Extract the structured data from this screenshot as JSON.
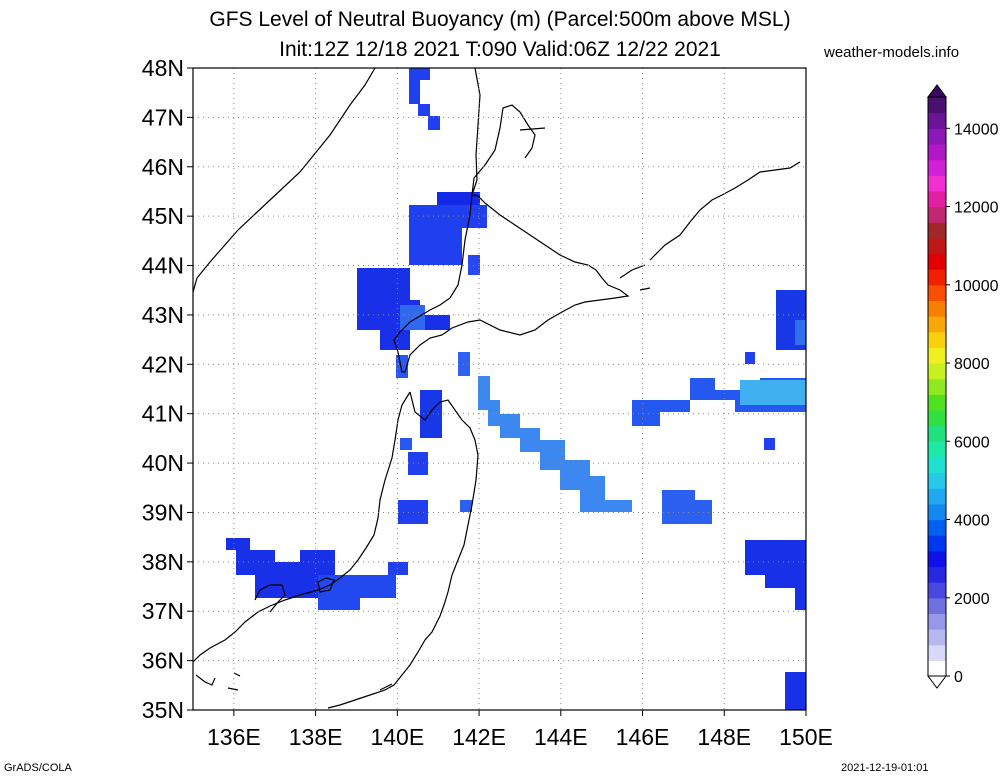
{
  "title_line1": "GFS Level of Neutral Buoyancy (m) (Parcel:500m above MSL)",
  "title_line2": "Init:12Z 12/18 2021 T:090 Valid:06Z 12/22 2021",
  "site": "weather-models.info",
  "footer_left": "GrADS/COLA",
  "footer_right": "2021-12-19-01:01",
  "map": {
    "lon_range": [
      135,
      150
    ],
    "lat_range": [
      35,
      48
    ],
    "lon_ticks": [
      "136E",
      "138E",
      "140E",
      "142E",
      "144E",
      "146E",
      "148E",
      "150E"
    ],
    "lat_ticks": [
      "35N",
      "36N",
      "37N",
      "38N",
      "39N",
      "40N",
      "41N",
      "42N",
      "43N",
      "44N",
      "45N",
      "46N",
      "47N",
      "48N"
    ],
    "grid": "dotted"
  },
  "colorbar": {
    "labels": [
      "0",
      "2000",
      "4000",
      "6000",
      "8000",
      "10000",
      "12000",
      "14000"
    ],
    "colors": [
      "#ffffff",
      "#d8d8f8",
      "#b8b8f0",
      "#9898e8",
      "#7070e0",
      "#4848e0",
      "#2828e0",
      "#1010e8",
      "#0038f0",
      "#0060f0",
      "#1488f0",
      "#20a8f0",
      "#28c8e8",
      "#20e0d0",
      "#20e8a8",
      "#20e080",
      "#30e040",
      "#50e020",
      "#90e820",
      "#c8f020",
      "#f0f020",
      "#f8d010",
      "#f8a808",
      "#f88000",
      "#f85000",
      "#f02000",
      "#e00000",
      "#c01818",
      "#a02828",
      "#c02870",
      "#e020a0",
      "#f030d0",
      "#d020d8",
      "#b018c8",
      "#8c18b8",
      "#6a1498",
      "#4a1070"
    ]
  }
}
